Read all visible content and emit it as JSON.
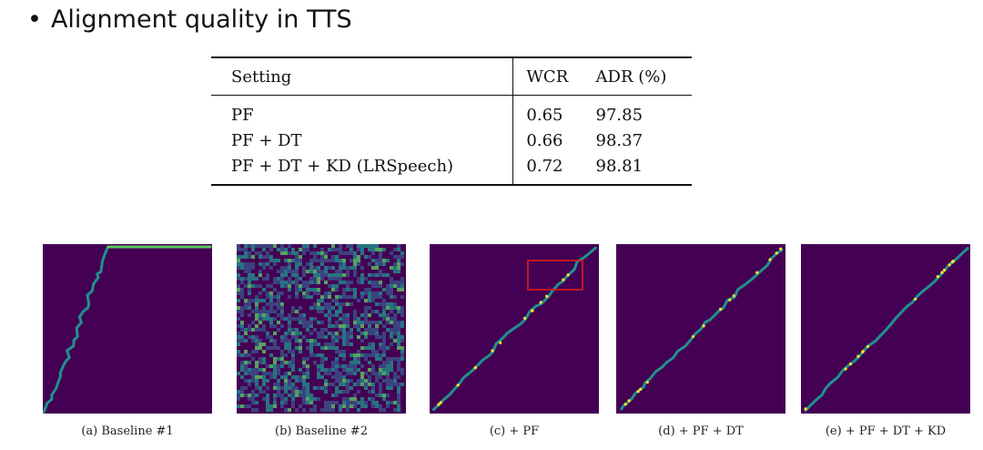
{
  "title": "Alignment quality in TTS",
  "bullet": "•",
  "table": {
    "headers": [
      "Setting",
      "WCR",
      "ADR (%)"
    ],
    "rows": [
      {
        "setting": "PF",
        "wcr": "0.65",
        "adr": "97.85"
      },
      {
        "setting": "PF + DT",
        "wcr": "0.66",
        "adr": "98.37"
      },
      {
        "setting": "PF + DT + KD (LRSpeech)",
        "wcr": "0.72",
        "adr": "98.81"
      }
    ]
  },
  "figures": [
    {
      "caption": "(a) Baseline #1",
      "pattern": "baseline1"
    },
    {
      "caption": "(b) Baseline #2",
      "pattern": "noise"
    },
    {
      "caption": "(c) + PF",
      "pattern": "diag",
      "highlight": true
    },
    {
      "caption": "(d) + PF + DT",
      "pattern": "diag"
    },
    {
      "caption": "(e) + PF + DT + KD",
      "pattern": "diag-clean"
    }
  ],
  "colors": {
    "background": "#440154",
    "line": "#21918c",
    "bright": "#fde725",
    "mid": "#5ec962",
    "highlight": "#e01b1b"
  }
}
